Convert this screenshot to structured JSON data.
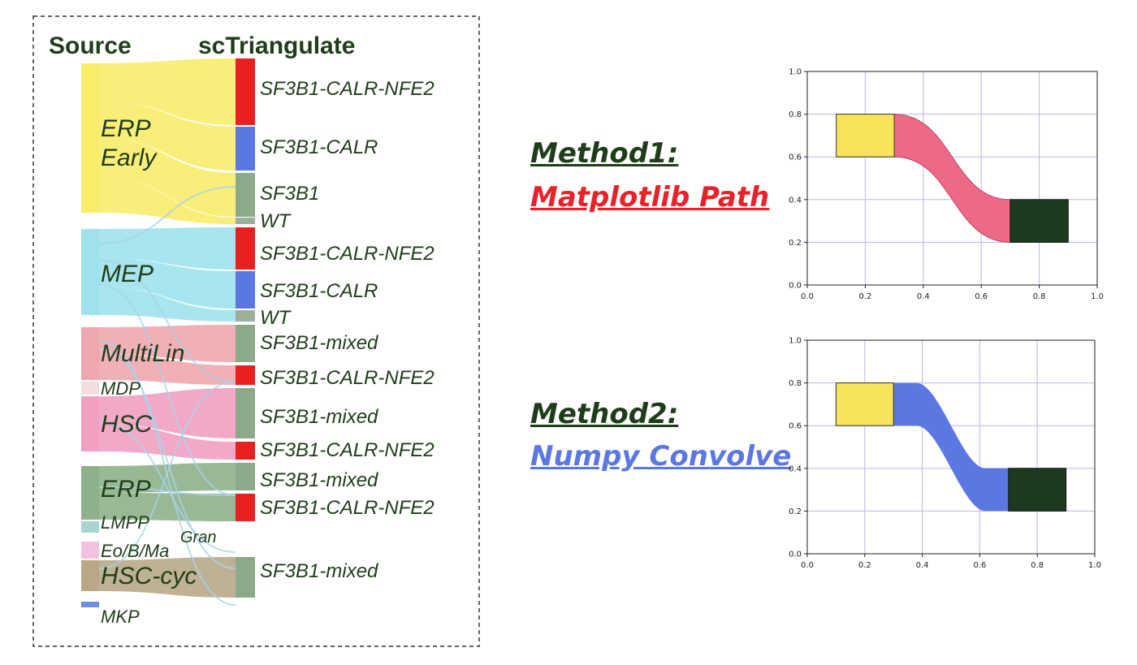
{
  "sankey": {
    "source_header": "Source",
    "target_header": "scTriangulate",
    "sources": [
      {
        "lines": [
          "ERP",
          "Early"
        ],
        "color": "#f8ec6a",
        "rows": [
          0,
          1,
          2,
          3
        ]
      },
      {
        "lines": [
          "MEP"
        ],
        "color": "#9fe2ec",
        "rows": [
          4,
          5,
          6
        ]
      },
      {
        "lines": [
          "MultiLin"
        ],
        "color": "#efa6ae",
        "rows": [
          7,
          8
        ]
      },
      {
        "lines": [
          "MDP"
        ],
        "color": "#f2dede",
        "rows": []
      },
      {
        "lines": [
          "HSC"
        ],
        "color": "#f1a0c2",
        "rows": [
          9,
          10
        ]
      },
      {
        "lines": [
          "ERP"
        ],
        "color": "#8eb08a",
        "rows": [
          11,
          12
        ]
      },
      {
        "lines": [
          "LMPP"
        ],
        "color": "#a8d5cf",
        "rows": []
      },
      {
        "lines": [
          "Eo/B/Ma"
        ],
        "color": "#f2c2e0",
        "rows": []
      },
      {
        "lines": [
          "HSC-cyc"
        ],
        "color": "#b8a888",
        "rows": [
          13
        ]
      },
      {
        "lines": [
          "MKP"
        ],
        "color": "#6a8ee0",
        "rows": []
      }
    ],
    "targets": [
      {
        "label": "SF3B1-CALR-NFE2",
        "color": "#e82020"
      },
      {
        "label": "SF3B1-CALR",
        "color": "#5b78e2"
      },
      {
        "label": "SF3B1",
        "color": "#8aaa8a"
      },
      {
        "label": "WT",
        "color": "#9ab09a"
      },
      {
        "label": "SF3B1-CALR-NFE2",
        "color": "#e82020"
      },
      {
        "label": "SF3B1-CALR",
        "color": "#5b78e2"
      },
      {
        "label": "WT",
        "color": "#9ab09a"
      },
      {
        "label": "SF3B1-mixed",
        "color": "#8aaa8a"
      },
      {
        "label": "SF3B1-CALR-NFE2",
        "color": "#e82020"
      },
      {
        "label": "SF3B1-mixed",
        "color": "#8aaa8a"
      },
      {
        "label": "SF3B1-CALR-NFE2",
        "color": "#e82020"
      },
      {
        "label": "SF3B1-mixed",
        "color": "#8aaa8a"
      },
      {
        "label": "SF3B1-CALR-NFE2",
        "color": "#e82020"
      },
      {
        "label": "SF3B1-mixed",
        "color": "#8aaa8a"
      }
    ],
    "extra_labels": [
      "Gran"
    ]
  },
  "method1": {
    "title": "Method1:",
    "subtitle": "Matplotlib Path",
    "title_color": "#1f3d1a",
    "subtitle_color": "#e8222a"
  },
  "method2": {
    "title": "Method2:",
    "subtitle": "Numpy Convolve",
    "title_color": "#1f3d1a",
    "subtitle_color": "#5b78e2"
  },
  "chart_data": [
    {
      "type": "area",
      "xlim": [
        0.0,
        1.0
      ],
      "ylim": [
        0.0,
        1.0
      ],
      "xticks": [
        "0.0",
        "0.2",
        "0.4",
        "0.6",
        "0.8",
        "1.0"
      ],
      "yticks": [
        "0.0",
        "0.2",
        "0.4",
        "0.6",
        "0.8",
        "1.0"
      ],
      "grid": true,
      "source_box": {
        "x": [
          0.1,
          0.3
        ],
        "y": [
          0.6,
          0.8
        ],
        "color": "#f8e35a"
      },
      "target_box": {
        "x": [
          0.7,
          0.9
        ],
        "y": [
          0.2,
          0.4
        ],
        "color": "#1e3a1e"
      },
      "flow": {
        "from_x": 0.3,
        "to_x": 0.7,
        "from_y": [
          0.6,
          0.8
        ],
        "to_y": [
          0.2,
          0.4
        ],
        "shape": "bezier",
        "color": "#ec6a86"
      }
    },
    {
      "type": "area",
      "xlim": [
        0.0,
        1.0
      ],
      "ylim": [
        0.0,
        1.0
      ],
      "xticks": [
        "0.0",
        "0.2",
        "0.4",
        "0.6",
        "0.8",
        "1.0"
      ],
      "yticks": [
        "0.0",
        "0.2",
        "0.4",
        "0.6",
        "0.8",
        "1.0"
      ],
      "grid": true,
      "source_box": {
        "x": [
          0.1,
          0.3
        ],
        "y": [
          0.6,
          0.8
        ],
        "color": "#f8e35a"
      },
      "target_box": {
        "x": [
          0.7,
          0.9
        ],
        "y": [
          0.2,
          0.4
        ],
        "color": "#1e3a1e"
      },
      "flow": {
        "from_x": 0.3,
        "to_x": 0.7,
        "from_y": [
          0.6,
          0.8
        ],
        "to_y": [
          0.2,
          0.4
        ],
        "shape": "convolve",
        "color": "#5b78e2"
      }
    }
  ]
}
